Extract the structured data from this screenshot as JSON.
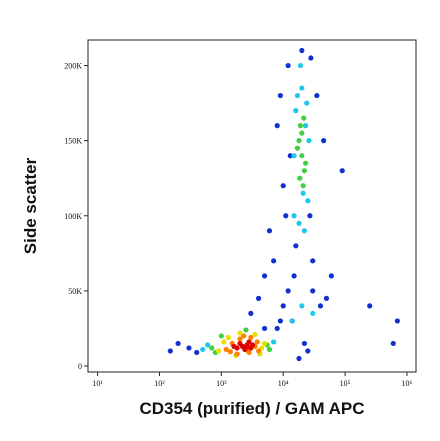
{
  "chart_data": {
    "type": "scatter",
    "xlabel": "CD354 (purified) / GAM APC",
    "ylabel": "Side scatter",
    "xscale": "log",
    "xlim": [
      7,
      1400000
    ],
    "ylim": [
      -4000,
      217000
    ],
    "xticks": [
      {
        "value": 10,
        "label": "10¹"
      },
      {
        "value": 100,
        "label": "10²"
      },
      {
        "value": 1000,
        "label": "10³"
      },
      {
        "value": 10000,
        "label": "10⁴"
      },
      {
        "value": 100000,
        "label": "10⁵"
      },
      {
        "value": 1000000,
        "label": "10⁶"
      }
    ],
    "yticks": [
      0,
      {
        "value": 50000,
        "label": "50K"
      },
      {
        "value": 100000,
        "label": "100K"
      },
      {
        "value": 150000,
        "label": "150K"
      },
      {
        "value": 200000,
        "label": "200K"
      }
    ],
    "series": [
      {
        "color": "#1030d0",
        "x": [
          300,
          200,
          150,
          400,
          9000,
          12000,
          8000,
          10000,
          6000,
          5000,
          30000,
          40000,
          50000,
          60000,
          35000,
          45000,
          13000,
          11000,
          7000,
          9000,
          25000,
          15000,
          28000,
          12000,
          16000,
          14000,
          10000,
          8000,
          30000,
          27000,
          90000,
          250000,
          600000,
          4000,
          3000,
          5000,
          700000,
          20000,
          22000,
          18000
        ],
        "values": [
          12000,
          15000,
          10000,
          9000,
          180000,
          200000,
          160000,
          120000,
          90000,
          60000,
          50000,
          40000,
          45000,
          60000,
          180000,
          150000,
          140000,
          100000,
          70000,
          30000,
          10000,
          60000,
          205000,
          50000,
          80000,
          30000,
          40000,
          25000,
          70000,
          100000,
          130000,
          40000,
          15000,
          45000,
          35000,
          25000,
          30000,
          210000,
          15000,
          5000
        ]
      },
      {
        "color": "#20c8e8",
        "x": [
          500,
          600,
          7000,
          15000,
          25000,
          16000,
          24000,
          20000,
          18000,
          22000,
          17000,
          26000,
          19000,
          21000,
          15000,
          23000,
          20000,
          30000,
          14000
        ],
        "values": [
          11000,
          14000,
          16000,
          100000,
          110000,
          170000,
          175000,
          185000,
          95000,
          90000,
          180000,
          150000,
          200000,
          115000,
          140000,
          160000,
          40000,
          35000,
          30000
        ]
      },
      {
        "color": "#40d040",
        "x": [
          700,
          800,
          5500,
          6000,
          1000,
          2500,
          18000,
          20000,
          22000,
          19000,
          21000,
          17000,
          23000,
          20000,
          18500,
          21500
        ],
        "values": [
          12000,
          9000,
          14000,
          11000,
          20000,
          24000,
          150000,
          140000,
          130000,
          160000,
          120000,
          145000,
          135000,
          155000,
          125000,
          165000
        ]
      },
      {
        "color": "#e8e000",
        "x": [
          900,
          1100,
          4500,
          5000,
          1300,
          3500,
          2000,
          1700,
          4200
        ],
        "values": [
          10000,
          16000,
          12000,
          15000,
          19000,
          21000,
          22000,
          7000,
          8000
        ]
      },
      {
        "color": "#ff8000",
        "x": [
          1200,
          1500,
          3500,
          4000,
          2000,
          2800,
          1400,
          3800,
          2300,
          1800,
          3000,
          2600
        ],
        "values": [
          11000,
          15000,
          13000,
          10000,
          18000,
          9000,
          9500,
          16000,
          20000,
          8000,
          19000,
          10500
        ]
      },
      {
        "color": "#e00000",
        "x": [
          1800,
          2200,
          2600,
          3000,
          2000,
          2400,
          2800,
          1600,
          3200,
          2500
        ],
        "values": [
          12000,
          13000,
          14000,
          12000,
          15000,
          11000,
          16000,
          13000,
          14000,
          12500
        ]
      }
    ]
  }
}
